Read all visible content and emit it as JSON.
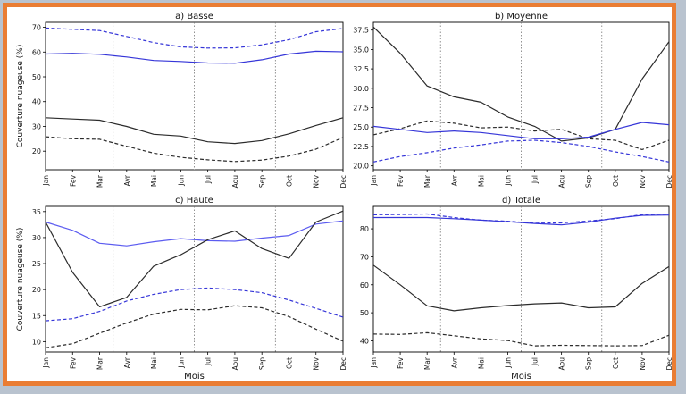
{
  "colors": {
    "black": "#2b2b2b",
    "blue": "#3535d8",
    "blue_light": "#5c5cf0",
    "vline": "#777777",
    "frame": "#ea7d33"
  },
  "months": [
    "Jan",
    "Fev",
    "Mar",
    "Avr",
    "Mai",
    "Jun",
    "Jul",
    "Aou",
    "Sep",
    "Oct",
    "Nov",
    "Dec"
  ],
  "vlines": [
    2.5,
    5.5,
    8.5
  ],
  "chart_data": [
    {
      "type": "line",
      "title": "a) Basse",
      "ylabel": "Couverture nuageuse (%)",
      "xlabel": "",
      "ylim": [
        12.5,
        72
      ],
      "yticks": [
        20,
        30,
        40,
        50,
        60,
        70
      ],
      "tick_decimals": 0,
      "series": [
        {
          "color": "blue",
          "dash": true,
          "values": [
            69.7,
            69.2,
            68.7,
            66.3,
            63.8,
            62.1,
            61.6,
            61.7,
            62.9,
            65.0,
            68.2,
            69.5
          ]
        },
        {
          "color": "blue",
          "dash": false,
          "values": [
            59.2,
            59.5,
            59.1,
            58.0,
            56.6,
            56.2,
            55.6,
            55.5,
            56.9,
            59.2,
            60.3,
            60.1
          ]
        },
        {
          "color": "black",
          "dash": false,
          "values": [
            33.5,
            33.0,
            32.5,
            30.0,
            26.8,
            26.1,
            23.8,
            23.1,
            24.3,
            27.0,
            30.4,
            33.5
          ]
        },
        {
          "color": "black",
          "dash": true,
          "values": [
            25.8,
            25.0,
            24.8,
            22.0,
            19.2,
            17.5,
            16.5,
            15.8,
            16.4,
            18.0,
            20.8,
            25.5
          ]
        }
      ]
    },
    {
      "type": "line",
      "title": "b) Moyenne",
      "ylabel": "",
      "xlabel": "",
      "ylim": [
        19.5,
        38.5
      ],
      "yticks": [
        20.0,
        22.5,
        25.0,
        27.5,
        30.0,
        32.5,
        35.0,
        37.5
      ],
      "tick_decimals": 1,
      "series": [
        {
          "color": "black",
          "dash": false,
          "values": [
            37.9,
            34.5,
            30.3,
            28.9,
            28.2,
            26.3,
            25.1,
            23.2,
            23.6,
            24.7,
            31.2,
            36.0
          ]
        },
        {
          "color": "black",
          "dash": true,
          "values": [
            24.0,
            24.8,
            25.8,
            25.5,
            24.9,
            25.0,
            24.5,
            24.7,
            23.5,
            23.3,
            22.1,
            23.3
          ]
        },
        {
          "color": "blue",
          "dash": false,
          "values": [
            25.1,
            24.7,
            24.3,
            24.5,
            24.3,
            23.9,
            23.5,
            23.5,
            23.7,
            24.7,
            25.6,
            25.3
          ]
        },
        {
          "color": "blue",
          "dash": true,
          "values": [
            20.5,
            21.2,
            21.7,
            22.3,
            22.7,
            23.2,
            23.3,
            23.0,
            22.5,
            21.8,
            21.2,
            20.5
          ]
        }
      ]
    },
    {
      "type": "line",
      "title": "c) Haute",
      "ylabel": "Couverture nuageuse (%)",
      "xlabel": "Mois",
      "ylim": [
        8,
        36
      ],
      "yticks": [
        10,
        15,
        20,
        25,
        30,
        35
      ],
      "tick_decimals": 0,
      "series": [
        {
          "color": "blue_light",
          "dash": false,
          "values": [
            33.0,
            31.4,
            28.9,
            28.4,
            29.2,
            29.8,
            29.4,
            29.3,
            29.9,
            30.4,
            32.6,
            33.2
          ]
        },
        {
          "color": "black",
          "dash": false,
          "values": [
            33.0,
            23.3,
            16.7,
            18.5,
            24.5,
            26.7,
            29.6,
            31.3,
            27.9,
            26.0,
            33.0,
            35.1
          ]
        },
        {
          "color": "blue",
          "dash": true,
          "values": [
            14.0,
            14.4,
            15.8,
            17.8,
            19.1,
            20.0,
            20.3,
            20.0,
            19.4,
            18.0,
            16.4,
            14.7
          ]
        },
        {
          "color": "black",
          "dash": true,
          "values": [
            8.8,
            9.6,
            11.6,
            13.6,
            15.3,
            16.2,
            16.1,
            16.9,
            16.5,
            14.8,
            12.4,
            10.1
          ]
        }
      ]
    },
    {
      "type": "line",
      "title": "d) Totale",
      "ylabel": "",
      "xlabel": "Mois",
      "ylim": [
        36,
        88
      ],
      "yticks": [
        40,
        50,
        60,
        70,
        80
      ],
      "tick_decimals": 0,
      "series": [
        {
          "color": "blue",
          "dash": true,
          "values": [
            85.0,
            85.1,
            85.3,
            84.0,
            83.1,
            82.7,
            82.0,
            82.1,
            82.8,
            83.6,
            85.1,
            85.3
          ]
        },
        {
          "color": "blue",
          "dash": false,
          "values": [
            84.0,
            84.0,
            84.0,
            83.6,
            83.1,
            82.5,
            81.9,
            81.4,
            82.4,
            83.8,
            84.8,
            84.9
          ]
        },
        {
          "color": "black",
          "dash": false,
          "values": [
            67.0,
            60.0,
            52.5,
            50.7,
            51.8,
            52.6,
            53.2,
            53.5,
            51.8,
            52.1,
            60.5,
            66.5
          ]
        },
        {
          "color": "black",
          "dash": true,
          "values": [
            42.4,
            42.3,
            42.9,
            41.8,
            40.7,
            40.1,
            38.2,
            38.4,
            38.3,
            38.2,
            38.3,
            42.0
          ]
        }
      ]
    }
  ]
}
